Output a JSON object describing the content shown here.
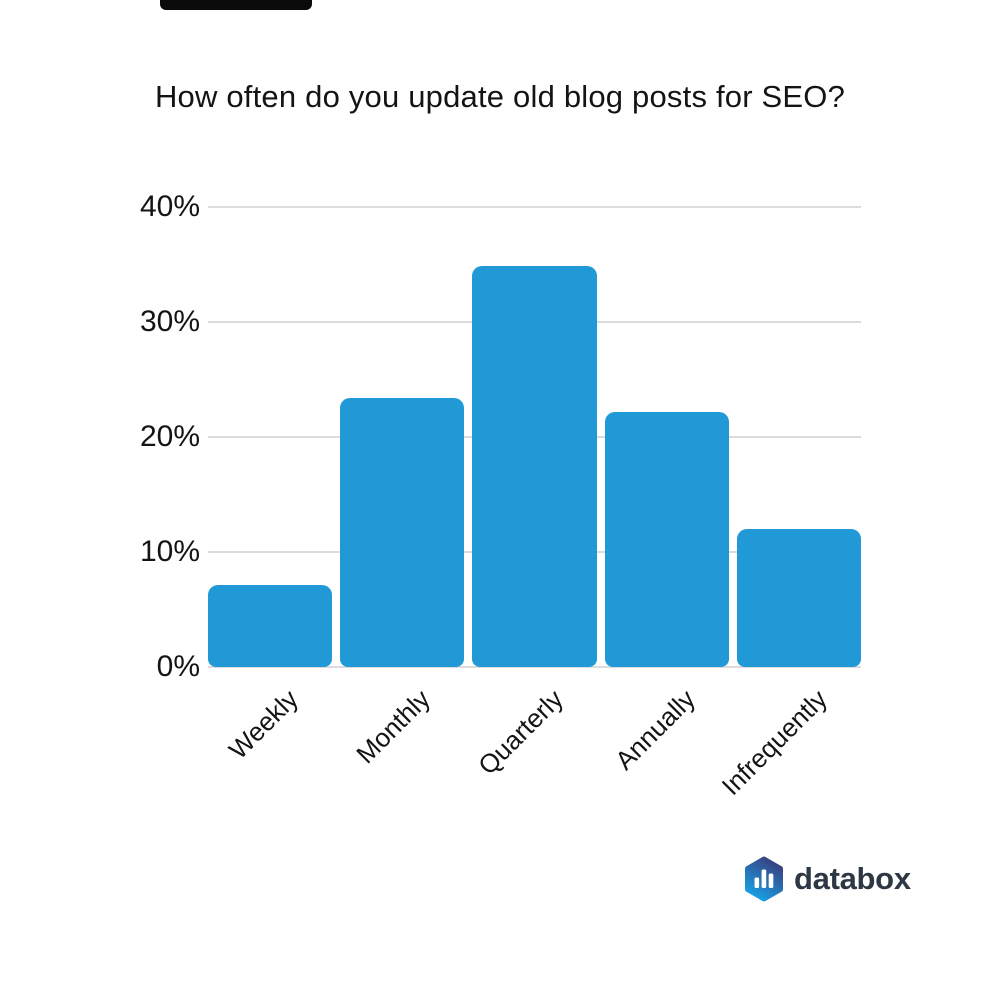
{
  "page": {
    "background": "#ffffff"
  },
  "decoration": {
    "top_bar_color": "#0b0b0b"
  },
  "chart_data": {
    "type": "bar",
    "title": "How often do you update old blog posts for SEO?",
    "categories": [
      "Weekly",
      "Monthly",
      "Quarterly",
      "Annually",
      "Infrequently"
    ],
    "values": [
      7.1,
      23.4,
      34.9,
      22.2,
      12
    ],
    "unit": "%",
    "xlabel": "",
    "ylabel": "",
    "ylim": [
      0,
      40
    ],
    "yticks": [
      0,
      10,
      20,
      30,
      40
    ],
    "ytick_labels": [
      "0%",
      "10%",
      "20%",
      "30%",
      "40%"
    ],
    "grid": true,
    "legend": false,
    "bar_color": "#2199d6",
    "gridline_color": "#dcdcdc",
    "text_color": "#141414"
  },
  "branding": {
    "logo_text": "databox",
    "logo_icon": "hexagon-bar-chart-icon",
    "logo_text_color": "#2e3744",
    "logo_gradient_top": "#3b3d7f",
    "logo_gradient_bottom": "#16a3e6"
  }
}
